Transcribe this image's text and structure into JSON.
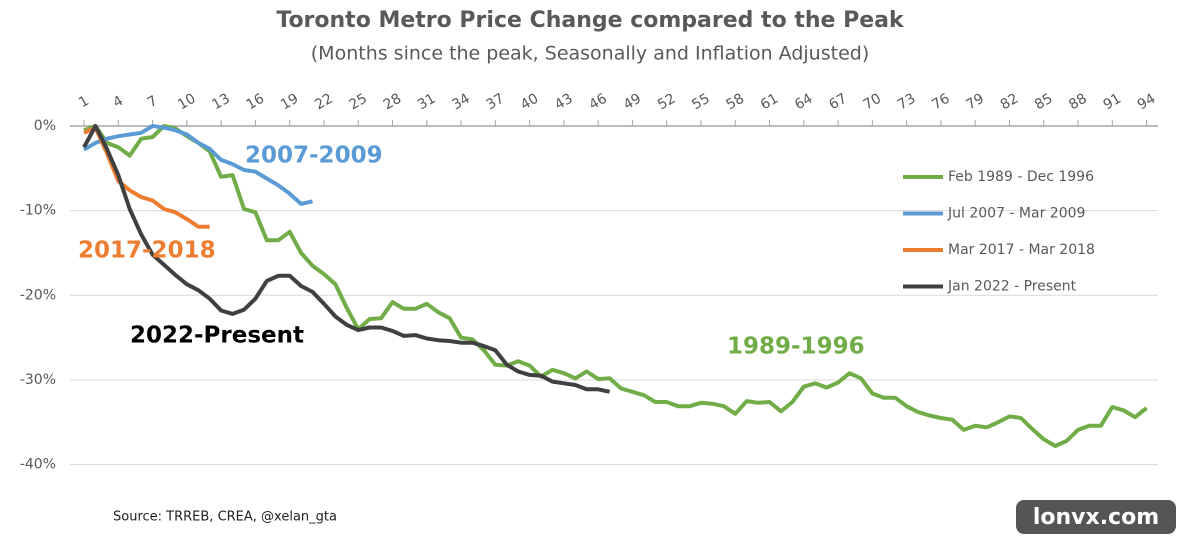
{
  "chart_data": {
    "type": "line",
    "title": "Toronto Metro Price Change compared to the Peak",
    "subtitle": "(Months since the peak, Seasonally and Inflation Adjusted)",
    "x": [
      1,
      2,
      3,
      4,
      5,
      6,
      7,
      8,
      9,
      10,
      11,
      12,
      13,
      14,
      15,
      16,
      17,
      18,
      19,
      20,
      21,
      22,
      23,
      24,
      25,
      26,
      27,
      28,
      29,
      30,
      31,
      32,
      33,
      34,
      35,
      36,
      37,
      38,
      39,
      40,
      41,
      42,
      43,
      44,
      45,
      46,
      47,
      48,
      49,
      50,
      51,
      52,
      53,
      54,
      55,
      56,
      57,
      58,
      59,
      60,
      61,
      62,
      63,
      64,
      65,
      66,
      67,
      68,
      69,
      70,
      71,
      72,
      73,
      74,
      75,
      76,
      77,
      78,
      79,
      80,
      81,
      82,
      83,
      84,
      85,
      86,
      87,
      88,
      89,
      90,
      91,
      92,
      93,
      94
    ],
    "xlim": [
      0,
      95
    ],
    "xticks": [
      1,
      4,
      7,
      10,
      13,
      16,
      19,
      22,
      25,
      28,
      31,
      34,
      37,
      40,
      43,
      46,
      49,
      52,
      55,
      58,
      61,
      64,
      67,
      70,
      73,
      76,
      79,
      82,
      85,
      88,
      91,
      94
    ],
    "ylim": [
      -43,
      0
    ],
    "yticks": [
      {
        "value": 0,
        "label": "0%"
      },
      {
        "value": -10,
        "label": "-10%"
      },
      {
        "value": -20,
        "label": "-20%"
      },
      {
        "value": -30,
        "label": "-30%"
      },
      {
        "value": -40,
        "label": "-40%"
      }
    ],
    "grid": true,
    "legend": "right",
    "series": [
      {
        "name": "Feb 1989 - Dec 1996",
        "color": "#70ad47",
        "values": [
          -0.5,
          0,
          -2,
          -2.5,
          -3.5,
          -1.5,
          -1.3,
          0,
          -0.3,
          -1.2,
          -2,
          -3,
          -6,
          -5.8,
          -9.8,
          -10.2,
          -13.5,
          -13.5,
          -12.5,
          -15,
          -16.5,
          -17.5,
          -18.7,
          -21.5,
          -24,
          -22.8,
          -22.7,
          -20.8,
          -21.6,
          -21.6,
          -21,
          -22,
          -22.7,
          -25,
          -25.2,
          -26.5,
          -28.2,
          -28.3,
          -27.8,
          -28.3,
          -29.6,
          -28.8,
          -29.2,
          -29.8,
          -29,
          -29.9,
          -29.8,
          -31,
          -31.4,
          -31.8,
          -32.6,
          -32.6,
          -33.1,
          -33.1,
          -32.7,
          -32.8,
          -33.1,
          -34,
          -32.5,
          -32.7,
          -32.6,
          -33.7,
          -32.6,
          -30.8,
          -30.4,
          -30.9,
          -30.3,
          -29.2,
          -29.8,
          -31.6,
          -32.1,
          -32.1,
          -33.1,
          -33.8,
          -34.2,
          -34.5,
          -34.7,
          -35.9,
          -35.4,
          -35.6,
          -35,
          -34.3,
          -34.5,
          -35.8,
          -37,
          -37.8,
          -37.2,
          -35.9,
          -35.4,
          -35.4,
          -33.2,
          -33.6,
          -34.4,
          -33.3
        ]
      },
      {
        "name": "Jul 2007 - Mar 2009",
        "color": "#5b9bd5",
        "values": [
          -2.8,
          -2,
          -1.5,
          -1.2,
          -1,
          -0.8,
          0,
          -0.2,
          -0.5,
          -1,
          -2,
          -2.7,
          -4,
          -4.5,
          -5.2,
          -5.4,
          -6.2,
          -7,
          -8,
          -9.2,
          -8.9,
          null,
          null,
          null,
          null,
          null,
          null,
          null,
          null,
          null,
          null,
          null,
          null,
          null,
          null,
          null,
          null,
          null,
          null,
          null,
          null,
          null,
          null,
          null,
          null,
          null,
          null,
          null,
          null,
          null,
          null,
          null,
          null,
          null,
          null,
          null,
          null,
          null,
          null,
          null,
          null,
          null,
          null,
          null,
          null,
          null,
          null,
          null,
          null,
          null,
          null,
          null,
          null,
          null,
          null,
          null,
          null,
          null,
          null,
          null,
          null,
          null,
          null,
          null,
          null,
          null,
          null,
          null,
          null,
          null,
          null,
          null,
          null,
          null
        ]
      },
      {
        "name": "Mar 2017 - Mar 2018",
        "color": "#ed7d31",
        "values": [
          -0.8,
          -0.2,
          -3.2,
          -6.5,
          -7.6,
          -8.4,
          -8.8,
          -9.8,
          -10.2,
          -11,
          -11.9,
          -11.9,
          null,
          null,
          null,
          null,
          null,
          null,
          null,
          null,
          null,
          null,
          null,
          null,
          null,
          null,
          null,
          null,
          null,
          null,
          null,
          null,
          null,
          null,
          null,
          null,
          null,
          null,
          null,
          null,
          null,
          null,
          null,
          null,
          null,
          null,
          null,
          null,
          null,
          null,
          null,
          null,
          null,
          null,
          null,
          null,
          null,
          null,
          null,
          null,
          null,
          null,
          null,
          null,
          null,
          null,
          null,
          null,
          null,
          null,
          null,
          null,
          null,
          null,
          null,
          null,
          null,
          null,
          null,
          null,
          null,
          null,
          null,
          null,
          null,
          null,
          null,
          null,
          null,
          null,
          null,
          null,
          null,
          null
        ]
      },
      {
        "name": "Jan 2022 - Present",
        "color": "#404040",
        "values": [
          -2.5,
          0,
          -2.7,
          -5.8,
          -9.8,
          -12.8,
          -15.2,
          -16.4,
          -17.6,
          -18.7,
          -19.4,
          -20.4,
          -21.8,
          -22.2,
          -21.7,
          -20.4,
          -18.3,
          -17.7,
          -17.7,
          -18.9,
          -19.6,
          -21,
          -22.5,
          -23.5,
          -24.1,
          -23.8,
          -23.8,
          -24.2,
          -24.8,
          -24.7,
          -25.1,
          -25.3,
          -25.4,
          -25.6,
          -25.6,
          -26,
          -26.5,
          -28.2,
          -29,
          -29.4,
          -29.5,
          -30.2,
          -30.4,
          -30.6,
          -31.1,
          -31.1,
          -31.4,
          null,
          null,
          null,
          null,
          null,
          null,
          null,
          null,
          null,
          null,
          null,
          null,
          null,
          null,
          null,
          null,
          null,
          null,
          null,
          null,
          null,
          null,
          null,
          null,
          null,
          null,
          null,
          null,
          null,
          null,
          null,
          null,
          null,
          null,
          null,
          null,
          null,
          null,
          null,
          null,
          null,
          null,
          null,
          null,
          null,
          null,
          null
        ]
      }
    ],
    "annotations": [
      "1989-1996",
      "2007-2009",
      "2017-2018",
      "2022-Present"
    ],
    "source": "Source: TRREB, CREA, @xelan_gta",
    "watermark": "lonvx.com"
  }
}
